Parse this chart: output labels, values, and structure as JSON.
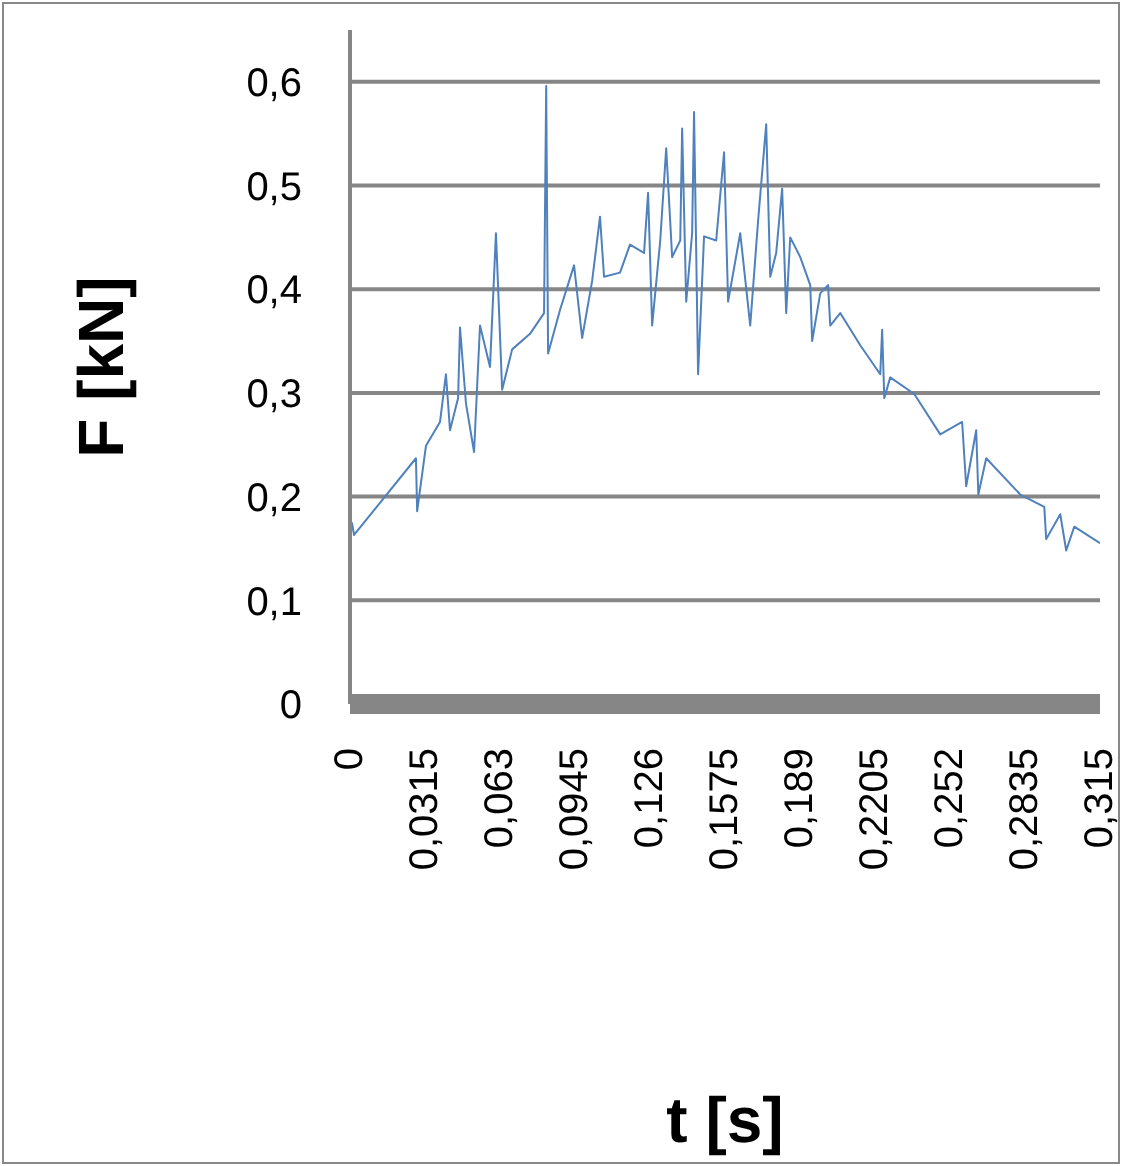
{
  "chart_data": {
    "type": "line",
    "xlabel": "t [s]",
    "ylabel": "F [kN]",
    "x": [
      0.0008,
      0.0017,
      0.0277,
      0.0282,
      0.0319,
      0.0378,
      0.0403,
      0.042,
      0.0454,
      0.0462,
      0.0487,
      0.0521,
      0.0546,
      0.0588,
      0.0613,
      0.0639,
      0.0681,
      0.0756,
      0.0815,
      0.0824,
      0.0832,
      0.0882,
      0.0941,
      0.0975,
      0.1017,
      0.105,
      0.1067,
      0.1134,
      0.1176,
      0.1235,
      0.1252,
      0.1269,
      0.1303,
      0.1328,
      0.1353,
      0.1387,
      0.1395,
      0.1412,
      0.1437,
      0.1445,
      0.1462,
      0.1487,
      0.1538,
      0.1571,
      0.1588,
      0.1639,
      0.1681,
      0.1714,
      0.1748,
      0.1765,
      0.179,
      0.1815,
      0.1832,
      0.1849,
      0.1891,
      0.1933,
      0.1941,
      0.1975,
      0.2008,
      0.2017,
      0.2059,
      0.2143,
      0.2227,
      0.2235,
      0.2244,
      0.2269,
      0.237,
      0.2479,
      0.2571,
      0.2588,
      0.263,
      0.2639,
      0.2672,
      0.2815,
      0.2916,
      0.2924,
      0.2983,
      0.3008,
      0.3042,
      0.315
    ],
    "series": [
      {
        "color": "#4f81bd",
        "values": [
          0.175,
          0.163,
          0.237,
          0.186,
          0.249,
          0.272,
          0.318,
          0.264,
          0.295,
          0.363,
          0.29,
          0.243,
          0.365,
          0.325,
          0.454,
          0.303,
          0.342,
          0.357,
          0.377,
          0.596,
          0.338,
          0.38,
          0.423,
          0.353,
          0.408,
          0.47,
          0.412,
          0.416,
          0.443,
          0.435,
          0.493,
          0.365,
          0.447,
          0.536,
          0.431,
          0.447,
          0.555,
          0.388,
          0.454,
          0.571,
          0.318,
          0.451,
          0.447,
          0.532,
          0.388,
          0.454,
          0.365,
          0.466,
          0.559,
          0.412,
          0.435,
          0.497,
          0.377,
          0.45,
          0.431,
          0.404,
          0.35,
          0.396,
          0.404,
          0.365,
          0.377,
          0.346,
          0.318,
          0.361,
          0.295,
          0.315,
          0.299,
          0.26,
          0.272,
          0.21,
          0.264,
          0.202,
          0.237,
          0.202,
          0.19,
          0.159,
          0.183,
          0.148,
          0.171,
          0.155
        ]
      }
    ],
    "xlim": [
      0,
      0.315
    ],
    "xticks": [
      0,
      {
        "value": 0.0315,
        "label": "0,0315"
      },
      {
        "value": 0.063,
        "label": "0,063"
      },
      {
        "value": 0.0945,
        "label": "0,0945"
      },
      {
        "value": 0.126,
        "label": "0,126"
      },
      {
        "value": 0.1575,
        "label": "0,1575"
      },
      {
        "value": 0.189,
        "label": "0,189"
      },
      {
        "value": 0.2205,
        "label": "0,2205"
      },
      {
        "value": 0.252,
        "label": "0,252"
      },
      {
        "value": 0.2835,
        "label": "0,2835"
      },
      {
        "value": 0.315,
        "label": "0,315"
      }
    ],
    "ylim": [
      0,
      0.65
    ],
    "yticks": [
      0,
      {
        "value": 0.1,
        "label": "0,1"
      },
      {
        "value": 0.2,
        "label": "0,2"
      },
      {
        "value": 0.3,
        "label": "0,3"
      },
      {
        "value": 0.4,
        "label": "0,4"
      },
      {
        "value": 0.5,
        "label": "0,5"
      },
      {
        "value": 0.6,
        "label": "0,6"
      }
    ],
    "grid": "y",
    "legend": false,
    "marker": "none",
    "line_style": "solid"
  }
}
